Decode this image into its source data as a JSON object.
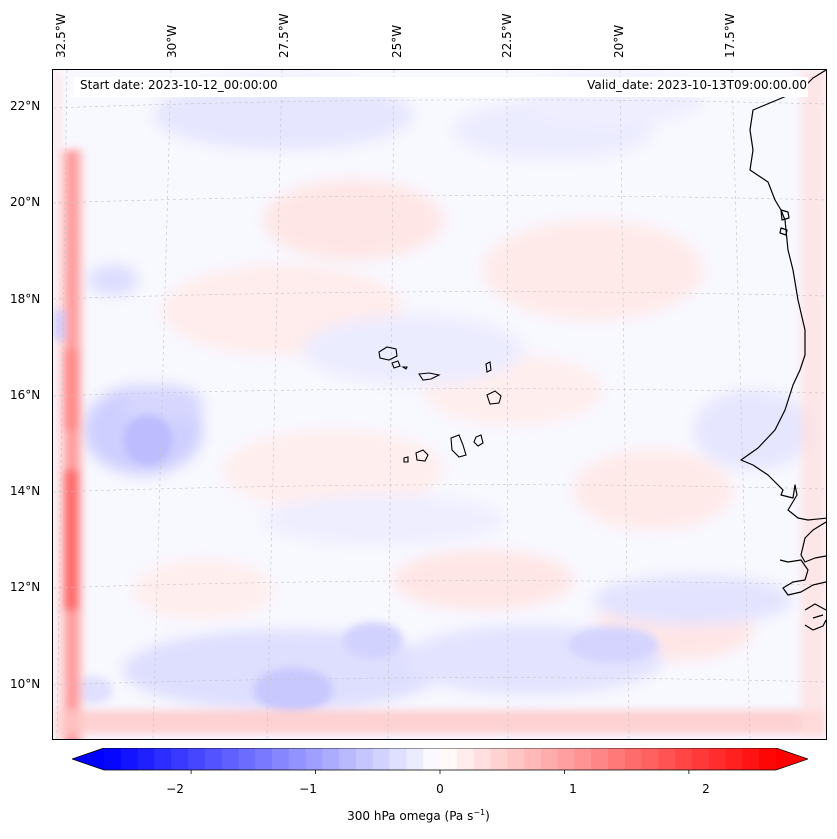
{
  "map": {
    "info": {
      "start_date": "Start date: 2023-10-12_00:00:00",
      "valid_date": "Valid_date: 2023-10-13T09:00:00.00"
    },
    "lon_labels": [
      "32.5°W",
      "30°W",
      "27.5°W",
      "25°W",
      "22.5°W",
      "20°W",
      "17.5°W"
    ],
    "lat_labels": [
      "22°N",
      "20°N",
      "18°N",
      "16°N",
      "14°N",
      "12°N",
      "10°N"
    ],
    "extent": {
      "lon_min": -33.0,
      "lon_max": -15.6,
      "lat_min": 8.8,
      "lat_max": 22.8
    },
    "gridlines": true,
    "colors": {
      "negative": "#0000ff",
      "zero": "#ffffff",
      "positive": "#ff0000",
      "coast": "#000000"
    }
  },
  "colorbar": {
    "ticks": [
      "−2",
      "−1",
      "0",
      "1",
      "2"
    ],
    "tick_values": [
      -2,
      -1,
      0,
      1,
      2
    ],
    "range": [
      -2.7,
      2.7
    ],
    "label": "300 hPa omega (Pa s",
    "label_sup": "−1",
    "label_close": ")",
    "extend": "both"
  }
}
